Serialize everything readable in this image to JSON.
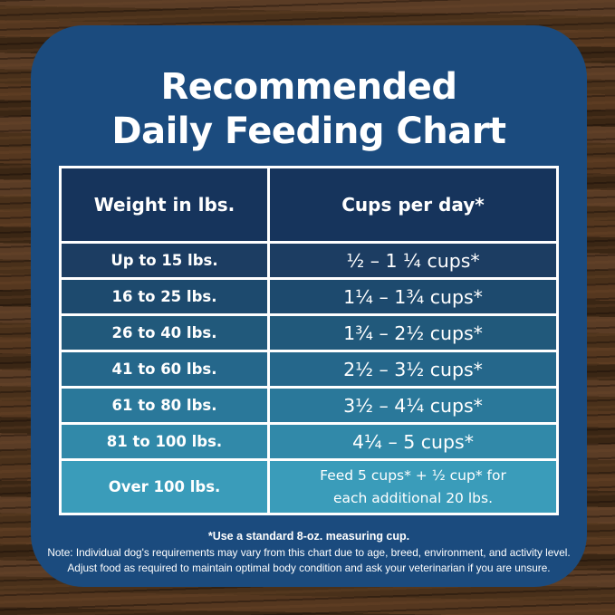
{
  "title": {
    "line1": "Recommended",
    "line2": "Daily Feeding Chart"
  },
  "table": {
    "headers": [
      "Weight in lbs.",
      "Cups per day*"
    ],
    "rows": [
      {
        "weight": "Up to 15 lbs.",
        "cups": "½ – 1 ¼ cups*",
        "color": "#1c3d62"
      },
      {
        "weight": "16 to 25 lbs.",
        "cups": "1¼ – 1¾  cups*",
        "color": "#1d4a6e"
      },
      {
        "weight": "26 to 40 lbs.",
        "cups": "1¾ – 2½ cups*",
        "color": "#21597b"
      },
      {
        "weight": "41 to 60 lbs.",
        "cups": "2½ – 3½ cups*",
        "color": "#25678b"
      },
      {
        "weight": "61 to 80 lbs.",
        "cups": "3½ – 4¼ cups*",
        "color": "#2a789a"
      },
      {
        "weight": "81 to 100 lbs.",
        "cups": "4¼ – 5 cups*",
        "color": "#3189a9"
      },
      {
        "weight": "Over 100 lbs.",
        "cups": "Feed 5 cups* + ½ cup* for\neach additional 20 lbs.",
        "color": "#3a9cba"
      }
    ]
  },
  "footnotes": {
    "measuring": "*Use a standard 8-oz. measuring cup.",
    "note1": "Note: Individual dog's requirements may vary from this chart due to age, breed, environment, and activity level.",
    "note2": "Adjust food as required to maintain optimal body condition and ask your veterinarian if you are unsure."
  },
  "colors": {
    "panel": "#1b4b7e",
    "header_cell": "#16345c",
    "grid_line": "#ffffff",
    "text": "#ffffff",
    "wood_base": "#462e1c"
  },
  "chart_data": {
    "type": "table",
    "title": "Recommended Daily Feeding Chart",
    "columns": [
      "Weight in lbs.",
      "Cups per day*"
    ],
    "rows": [
      [
        "Up to 15 lbs.",
        "½ – 1 ¼ cups*"
      ],
      [
        "16 to 25 lbs.",
        "1¼ – 1¾ cups*"
      ],
      [
        "26 to 40 lbs.",
        "1¾ – 2½ cups*"
      ],
      [
        "41 to 60 lbs.",
        "2½ – 3½ cups*"
      ],
      [
        "61 to 80 lbs.",
        "3½ – 4¼ cups*"
      ],
      [
        "81 to 100 lbs.",
        "4¼ – 5 cups*"
      ],
      [
        "Over 100 lbs.",
        "Feed 5 cups* + ½ cup* for each additional 20 lbs."
      ]
    ],
    "notes": [
      "*Use a standard 8-oz. measuring cup.",
      "Note: Individual dog's requirements may vary from this chart due to age, breed, environment, and activity level.",
      "Adjust food as required to maintain optimal body condition and ask your veterinarian if you are unsure."
    ]
  }
}
